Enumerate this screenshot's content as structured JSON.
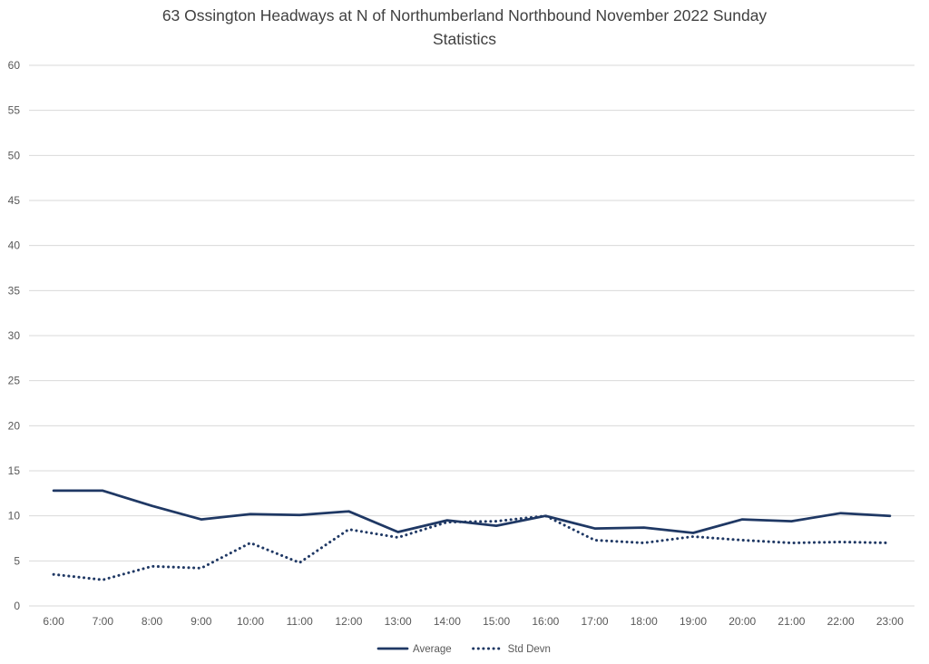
{
  "chart_data": {
    "type": "line",
    "title": "63 Ossington Headways at N of Northumberland Northbound November 2022 Sunday Statistics",
    "xlabel": "",
    "ylabel": "",
    "ylim": [
      0,
      60
    ],
    "ytick_step": 5,
    "grid": true,
    "legend_position": "bottom-center",
    "categories": [
      "6:00",
      "7:00",
      "8:00",
      "9:00",
      "10:00",
      "11:00",
      "12:00",
      "13:00",
      "14:00",
      "15:00",
      "16:00",
      "17:00",
      "18:00",
      "19:00",
      "20:00",
      "21:00",
      "22:00",
      "23:00"
    ],
    "series": [
      {
        "name": "Average",
        "style": "solid",
        "color": "#1f3864",
        "values": [
          12.8,
          12.8,
          11.1,
          9.6,
          10.2,
          10.1,
          10.5,
          8.2,
          9.5,
          8.9,
          10.0,
          8.6,
          8.7,
          8.1,
          9.6,
          9.4,
          10.3,
          10.0
        ]
      },
      {
        "name": "Std Devn",
        "style": "dotted",
        "color": "#1f3864",
        "values": [
          3.5,
          2.9,
          4.4,
          4.2,
          7.0,
          4.8,
          8.5,
          7.6,
          9.3,
          9.4,
          10.0,
          7.3,
          7.0,
          7.7,
          7.3,
          7.0,
          7.1,
          7.0
        ]
      }
    ],
    "colors": {
      "grid": "#d9d9d9",
      "axis_text": "#595959",
      "title_text": "#404040"
    }
  }
}
